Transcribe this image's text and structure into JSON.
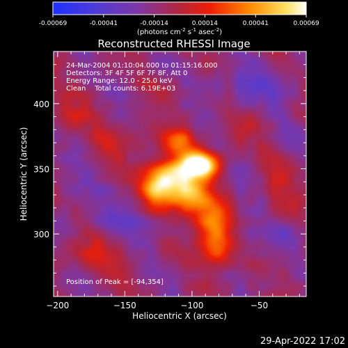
{
  "chart_data": {
    "type": "heatmap",
    "title": "Reconstructed RHESSI Image",
    "xlabel": "Heliocentric X (arcsec)",
    "ylabel": "Heliocentric Y (arcsec)",
    "xlim": [
      -203,
      -15
    ],
    "ylim": [
      252,
      440
    ],
    "x_ticks": [
      -200,
      -150,
      -100,
      -50
    ],
    "y_ticks": [
      300,
      350,
      400
    ],
    "colorbar": {
      "ticks": [
        "-0.00069",
        "-0.00041",
        "-0.00014",
        "0.00014",
        "0.00041",
        "0.00069"
      ],
      "range": [
        -0.00069,
        0.00069
      ],
      "unit_label_parts": [
        "(photons cm",
        "-2",
        " s",
        "-1",
        " asec",
        "-2",
        ")"
      ]
    },
    "annotations": [
      "24-Mar-2004 01:10:04.000 to 01:15:16.000",
      "Detectors: 3F 4F 5F 6F 7F 8F, Att 0",
      "Energy Range: 12.0 - 25.0 keV",
      "Clean    Total counts: 6.19E+03"
    ],
    "peak_label": "Position of Peak = [-94,354]",
    "peak": [
      -94,
      354
    ],
    "sources": [
      {
        "x": -94,
        "y": 354,
        "sx": 9,
        "sy": 7,
        "a": 1.0
      },
      {
        "x": -112,
        "y": 344,
        "sx": 14,
        "sy": 12,
        "a": 0.78
      },
      {
        "x": -125,
        "y": 334,
        "sx": 9,
        "sy": 10,
        "a": 0.55
      },
      {
        "x": -100,
        "y": 326,
        "sx": 11,
        "sy": 9,
        "a": 0.6
      },
      {
        "x": -86,
        "y": 308,
        "sx": 9,
        "sy": 11,
        "a": 0.55
      },
      {
        "x": -80,
        "y": 288,
        "sx": 9,
        "sy": 11,
        "a": 0.5
      },
      {
        "x": -110,
        "y": 372,
        "sx": 9,
        "sy": 7,
        "a": 0.4
      },
      {
        "x": -160,
        "y": 372,
        "sx": 14,
        "sy": 9,
        "a": 0.22
      },
      {
        "x": -190,
        "y": 392,
        "sx": 9,
        "sy": 9,
        "a": 0.18
      },
      {
        "x": -172,
        "y": 282,
        "sx": 16,
        "sy": 11,
        "a": 0.22
      },
      {
        "x": -35,
        "y": 330,
        "sx": 9,
        "sy": 16,
        "a": 0.18
      },
      {
        "x": -60,
        "y": 380,
        "sx": 12,
        "sy": 9,
        "a": 0.12
      },
      {
        "x": -120,
        "y": 410,
        "sx": 12,
        "sy": 8,
        "a": 0.15
      },
      {
        "x": -55,
        "y": 414,
        "sx": 22,
        "sy": 10,
        "a": -0.22
      },
      {
        "x": -40,
        "y": 300,
        "sx": 14,
        "sy": 9,
        "a": -0.2
      },
      {
        "x": -150,
        "y": 312,
        "sx": 16,
        "sy": 8,
        "a": -0.2
      },
      {
        "x": -185,
        "y": 330,
        "sx": 10,
        "sy": 12,
        "a": -0.12
      }
    ]
  },
  "footer": {
    "timestamp": "29-Apr-2022 17:02"
  }
}
